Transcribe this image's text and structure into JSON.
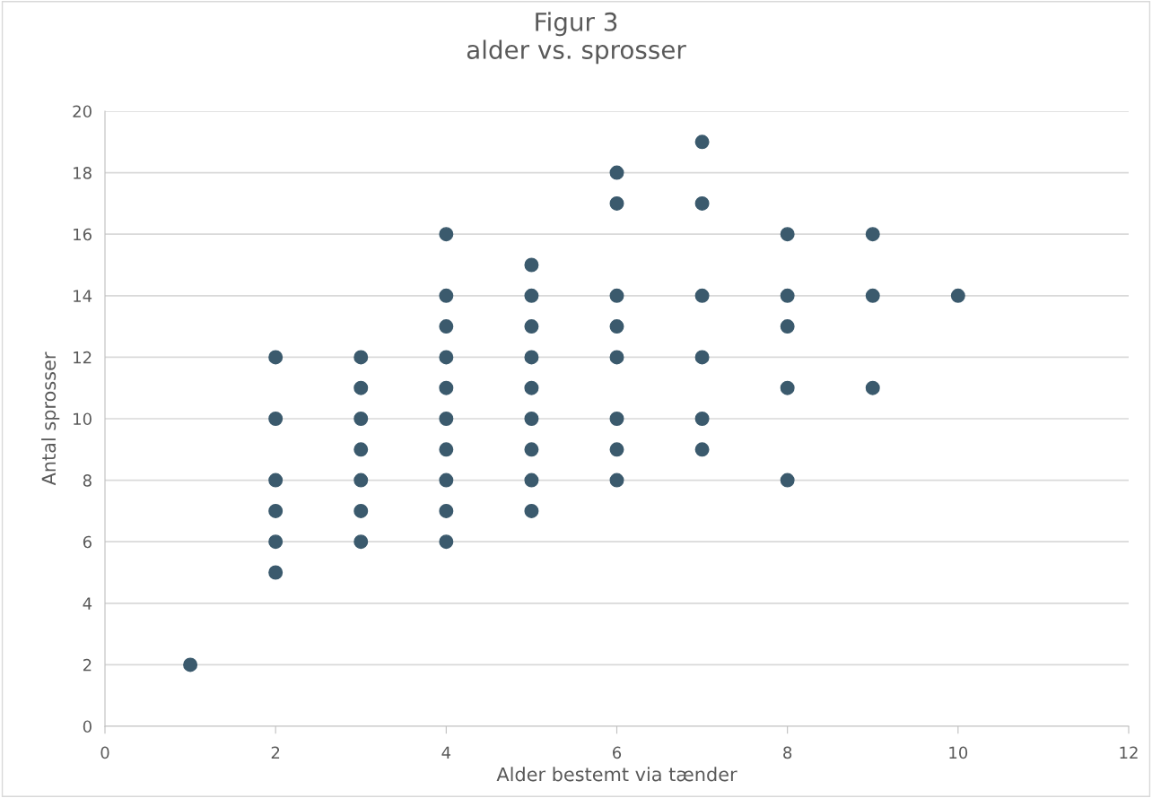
{
  "chart_data": {
    "type": "scatter",
    "title": "Figur 3\nalder vs. sprosser",
    "xlabel": "Alder bestemt via tænder",
    "ylabel": "Antal sprosser",
    "series": [
      {
        "color": "#3b5a6d",
        "x": [
          1,
          2,
          2,
          2,
          2,
          2,
          2,
          3,
          3,
          3,
          3,
          3,
          3,
          3,
          4,
          4,
          4,
          4,
          4,
          4,
          4,
          4,
          4,
          4,
          5,
          5,
          5,
          5,
          5,
          5,
          5,
          5,
          5,
          6,
          6,
          6,
          6,
          6,
          6,
          6,
          6,
          7,
          7,
          7,
          7,
          7,
          7,
          8,
          8,
          8,
          8,
          8,
          9,
          9,
          9,
          10
        ],
        "values": [
          2,
          12,
          10,
          8,
          7,
          6,
          5,
          12,
          11,
          10,
          9,
          8,
          7,
          6,
          16,
          14,
          13,
          12,
          11,
          10,
          9,
          8,
          7,
          6,
          15,
          14,
          13,
          12,
          11,
          10,
          9,
          8,
          7,
          18,
          17,
          14,
          13,
          12,
          10,
          9,
          8,
          19,
          17,
          14,
          12,
          10,
          9,
          16,
          14,
          13,
          11,
          8,
          16,
          14,
          11,
          14
        ]
      }
    ],
    "xlim": [
      0,
      12
    ],
    "xticks": [
      0,
      2,
      4,
      6,
      8,
      10,
      12
    ],
    "ylim": [
      0,
      20
    ],
    "yticks": [
      0,
      2,
      4,
      6,
      8,
      10,
      12,
      14,
      16,
      18,
      20
    ],
    "grid": "y",
    "marker": "circle",
    "legend": false
  }
}
